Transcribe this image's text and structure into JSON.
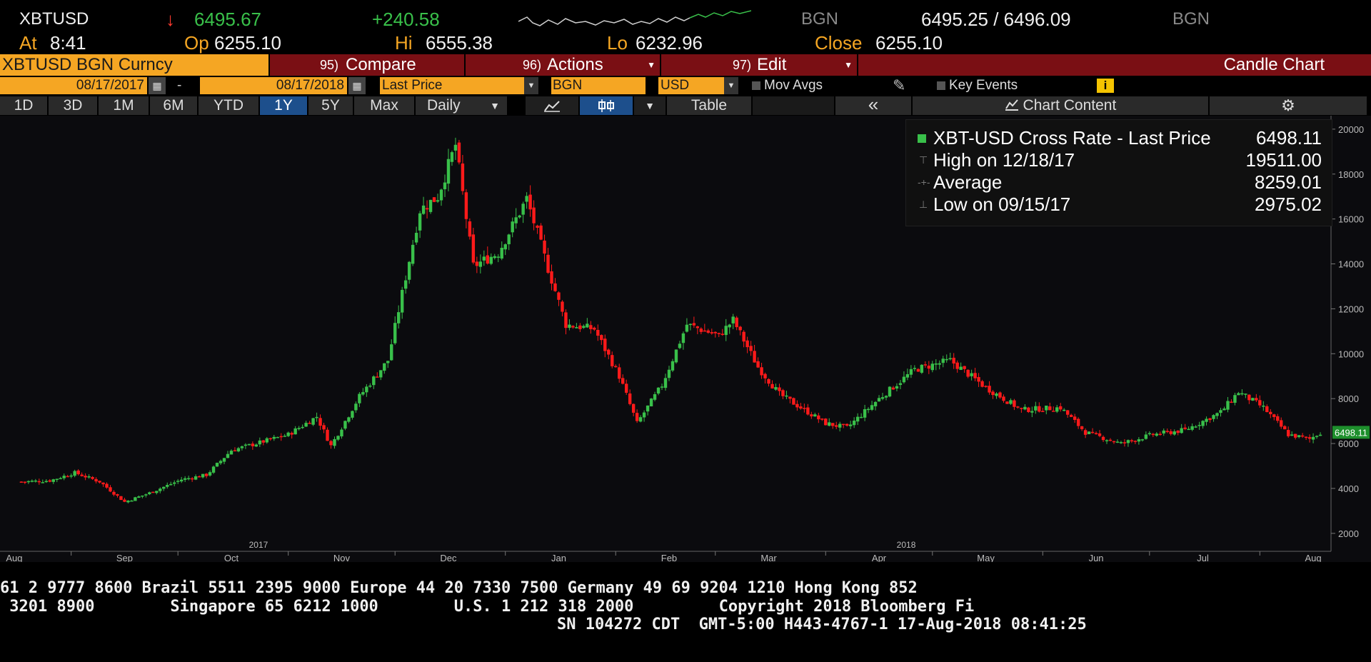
{
  "quote": {
    "ticker": "XBTUSD",
    "arrow": "↓",
    "last": "6495.67",
    "change": "+240.58",
    "source1": "BGN",
    "bid_ask": "6495.25 / 6496.09",
    "source2": "BGN",
    "at_label": "At",
    "at_time": "8:41",
    "op_label": "Op",
    "op": "6255.10",
    "hi_label": "Hi",
    "hi": "6555.38",
    "lo_label": "Lo",
    "lo": "6232.96",
    "close_label": "Close",
    "close": "6255.10"
  },
  "menubar": {
    "security": "XBTUSD BGN Curncy",
    "compare_num": "95)",
    "compare": "Compare",
    "actions_num": "96)",
    "actions": "Actions",
    "edit_num": "97)",
    "edit": "Edit",
    "chart_type": "Candle Chart"
  },
  "range": {
    "start": "08/17/2017",
    "dash": "-",
    "end": "08/17/2018",
    "field": "Last Price",
    "source": "BGN",
    "currency": "USD",
    "mov_avgs": "Mov Avgs",
    "key_events": "Key Events",
    "info": "i"
  },
  "toolbar": {
    "periods": [
      "1D",
      "3D",
      "1M",
      "6M",
      "YTD",
      "1Y",
      "5Y",
      "Max"
    ],
    "active_period": "1Y",
    "frequency": "Daily",
    "table": "Table",
    "collapse": "«",
    "chart_content": "Chart Content",
    "settings": "⚙"
  },
  "legend": {
    "rows": [
      {
        "label": "XBT-USD Cross Rate - Last Price",
        "value": "6498.11"
      },
      {
        "label": "High on 12/18/17",
        "value": "19511.00"
      },
      {
        "label": "Average",
        "value": "8259.01"
      },
      {
        "label": "Low on 09/15/17",
        "value": "2975.02"
      }
    ]
  },
  "last_price_tag": "6498.11",
  "chart_data": {
    "type": "candlestick",
    "title": "XBT-USD Cross Rate - Last Price",
    "ylim": [
      1200,
      20600
    ],
    "yticks": [
      2000,
      4000,
      6000,
      8000,
      10000,
      12000,
      14000,
      16000,
      18000,
      20000
    ],
    "month_labels": [
      "Aug",
      "Sep",
      "Oct",
      "Nov",
      "Dec",
      "Jan",
      "Feb",
      "Mar",
      "Apr",
      "May",
      "Jun",
      "Jul",
      "Aug"
    ],
    "year_labels": [
      "2017",
      "2018"
    ],
    "close_path": [
      [
        "2017-08-17",
        4300
      ],
      [
        "2017-08-25",
        4350
      ],
      [
        "2017-09-01",
        4700
      ],
      [
        "2017-09-08",
        4300
      ],
      [
        "2017-09-15",
        3400
      ],
      [
        "2017-09-22",
        3800
      ],
      [
        "2017-10-01",
        4400
      ],
      [
        "2017-10-08",
        4600
      ],
      [
        "2017-10-15",
        5700
      ],
      [
        "2017-10-22",
        6000
      ],
      [
        "2017-10-31",
        6400
      ],
      [
        "2017-11-08",
        7200
      ],
      [
        "2017-11-12",
        5900
      ],
      [
        "2017-11-20",
        8100
      ],
      [
        "2017-11-28",
        9700
      ],
      [
        "2017-12-07",
        16400
      ],
      [
        "2017-12-12",
        17000
      ],
      [
        "2017-12-17",
        19300
      ],
      [
        "2017-12-22",
        13900
      ],
      [
        "2017-12-29",
        14500
      ],
      [
        "2018-01-06",
        16900
      ],
      [
        "2018-01-12",
        13800
      ],
      [
        "2018-01-17",
        11300
      ],
      [
        "2018-01-25",
        11100
      ],
      [
        "2018-02-01",
        9000
      ],
      [
        "2018-02-06",
        6900
      ],
      [
        "2018-02-13",
        8600
      ],
      [
        "2018-02-20",
        11300
      ],
      [
        "2018-03-01",
        10800
      ],
      [
        "2018-03-05",
        11500
      ],
      [
        "2018-03-12",
        9400
      ],
      [
        "2018-03-18",
        8200
      ],
      [
        "2018-03-31",
        6900
      ],
      [
        "2018-04-06",
        6700
      ],
      [
        "2018-04-15",
        8000
      ],
      [
        "2018-04-25",
        9300
      ],
      [
        "2018-05-05",
        9700
      ],
      [
        "2018-05-15",
        8500
      ],
      [
        "2018-05-25",
        7500
      ],
      [
        "2018-06-05",
        7600
      ],
      [
        "2018-06-12",
        6500
      ],
      [
        "2018-06-22",
        6000
      ],
      [
        "2018-07-01",
        6400
      ],
      [
        "2018-07-10",
        6600
      ],
      [
        "2018-07-20",
        7400
      ],
      [
        "2018-07-25",
        8300
      ],
      [
        "2018-08-01",
        7600
      ],
      [
        "2018-08-08",
        6400
      ],
      [
        "2018-08-14",
        6200
      ],
      [
        "2018-08-17",
        6498
      ]
    ]
  },
  "footer": {
    "line1": "61 2 9777 8600 Brazil 5511 2395 9000 Europe 44 20 7330 7500 Germany 49 69 9204 1210 Hong Kong 852",
    "line2": " 3201 8900        Singapore 65 6212 1000        U.S. 1 212 318 2000         Copyright 2018 Bloomberg Fi",
    "line3": "SN 104272 CDT  GMT-5:00 H443-4767-1 17-Aug-2018 08:41:25"
  },
  "colors": {
    "up": "#39c04a",
    "down": "#ff1a1a",
    "orange": "#f5a623",
    "menu_red": "#7a0f14"
  }
}
